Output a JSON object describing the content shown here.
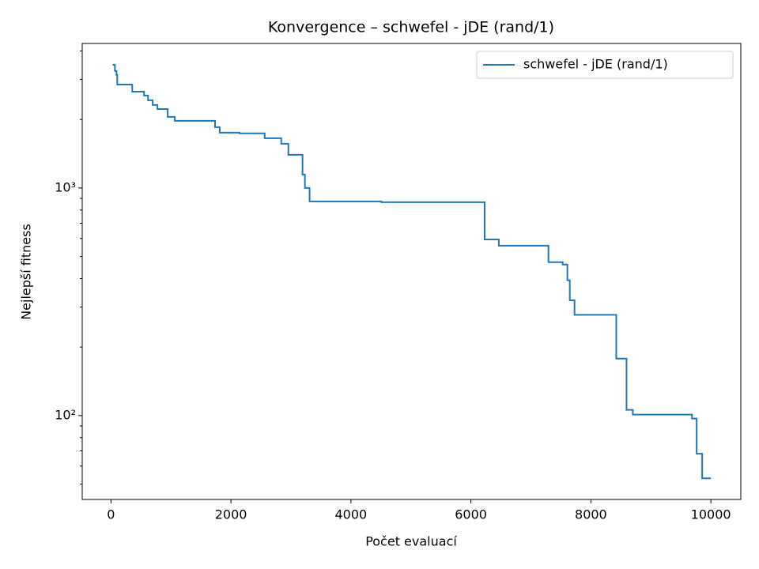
{
  "chart_data": {
    "type": "line",
    "title": "Konvergence – schwefel - jDE (rand/1)",
    "xlabel": "Počet evaluací",
    "ylabel": "Nejlepší fitness",
    "x": [
      26,
      66,
      92,
      105,
      355,
      552,
      618,
      696,
      775,
      946,
      1064,
      1735,
      1813,
      2142,
      2562,
      2838,
      2957,
      3193,
      3233,
      3311,
      4507,
      6229,
      6465,
      7293,
      7530,
      7608,
      7648,
      7727,
      8423,
      8594,
      8699,
      9685,
      9763,
      9855,
      10000
    ],
    "series": [
      {
        "name": "schwefel - jDE (rand/1)",
        "color": "#1f77b4",
        "values": [
          3480,
          3265,
          3136,
          2848,
          2650,
          2548,
          2428,
          2315,
          2222,
          2054,
          1973,
          1851,
          1750,
          1737,
          1655,
          1564,
          1399,
          1146,
          1000,
          873,
          866,
          594,
          558,
          472,
          461,
          393,
          321,
          277,
          178,
          106,
          101,
          97,
          68,
          53,
          53
        ]
      }
    ],
    "step": "post",
    "xlim": [
      -479,
      10499
    ],
    "xticks": [
      0,
      2000,
      4000,
      6000,
      8000,
      10000
    ],
    "ylim": [
      42.8,
      4315
    ],
    "yscale": "log",
    "yticks": [
      {
        "value": 100,
        "label": "10²"
      },
      {
        "value": 1000,
        "label": "10³"
      }
    ],
    "yminorticks": [
      50,
      60,
      70,
      80,
      90,
      200,
      300,
      400,
      500,
      600,
      700,
      800,
      900,
      2000,
      3000,
      4000
    ],
    "legend": "upper right",
    "grid": false
  }
}
